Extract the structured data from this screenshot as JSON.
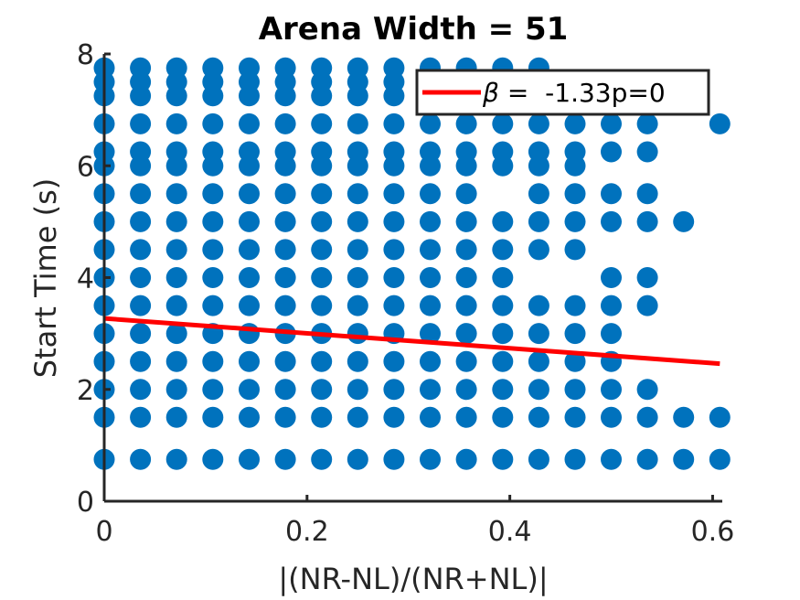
{
  "chart_data": {
    "type": "scatter",
    "title": "Arena Width =  51",
    "xlabel": "|(NR-NL)/(NR+NL)|",
    "ylabel": "Start Time (s)",
    "xlim": [
      0,
      0.605
    ],
    "ylim": [
      0,
      8
    ],
    "xticks": [
      0,
      0.2,
      0.4,
      0.6
    ],
    "xtick_labels": [
      "0",
      "0.2",
      "0.4",
      "0.6"
    ],
    "yticks": [
      0,
      2,
      4,
      6,
      8
    ],
    "ytick_labels": [
      "0",
      "2",
      "4",
      "6",
      "8"
    ],
    "grid": false,
    "legend_position": "top-right",
    "colors": {
      "points": "#0072BD",
      "fit": "#FF0000",
      "axis": "#262626"
    },
    "x_levels": [
      0,
      0.0357,
      0.0714,
      0.1071,
      0.1429,
      0.1786,
      0.2143,
      0.25,
      0.2857,
      0.3214,
      0.3571,
      0.3929,
      0.4286,
      0.4643,
      0.5,
      0.5357,
      0.5714,
      0.6071
    ],
    "rows": [
      {
        "y": 0.75,
        "cols": [
          0,
          1,
          2,
          3,
          4,
          5,
          6,
          7,
          8,
          9,
          10,
          11,
          12,
          13,
          14,
          15,
          16,
          17
        ]
      },
      {
        "y": 1.5,
        "cols": [
          0,
          1,
          2,
          3,
          4,
          5,
          6,
          7,
          8,
          9,
          10,
          11,
          12,
          13,
          14,
          15,
          16,
          17
        ]
      },
      {
        "y": 2.0,
        "cols": [
          0,
          1,
          2,
          3,
          4,
          5,
          6,
          7,
          8,
          9,
          10,
          11,
          12,
          13,
          14,
          15
        ]
      },
      {
        "y": 2.5,
        "cols": [
          0,
          1,
          2,
          3,
          4,
          5,
          6,
          7,
          8,
          9,
          10,
          11,
          12,
          13,
          14
        ]
      },
      {
        "y": 3.0,
        "cols": [
          0,
          1,
          2,
          3,
          4,
          5,
          6,
          7,
          8,
          9,
          10,
          11,
          12,
          13,
          14
        ]
      },
      {
        "y": 3.5,
        "cols": [
          0,
          1,
          2,
          3,
          4,
          5,
          6,
          7,
          8,
          9,
          10,
          11,
          12,
          13,
          14,
          15
        ]
      },
      {
        "y": 4.0,
        "cols": [
          0,
          1,
          2,
          3,
          4,
          5,
          6,
          7,
          8,
          9,
          10,
          11,
          14,
          15
        ]
      },
      {
        "y": 4.5,
        "cols": [
          0,
          1,
          2,
          3,
          4,
          5,
          6,
          7,
          8,
          9,
          10,
          11,
          12,
          13
        ]
      },
      {
        "y": 5.0,
        "cols": [
          0,
          1,
          2,
          3,
          4,
          5,
          6,
          7,
          8,
          9,
          10,
          11,
          12,
          13,
          14,
          15,
          16
        ]
      },
      {
        "y": 5.5,
        "cols": [
          0,
          1,
          2,
          3,
          4,
          5,
          6,
          7,
          8,
          9,
          10,
          12,
          13,
          14,
          15
        ]
      },
      {
        "y": 6.0,
        "cols": [
          0,
          1,
          2,
          3,
          4,
          5,
          6,
          7,
          8,
          9,
          10,
          11,
          12,
          13
        ]
      },
      {
        "y": 6.25,
        "cols": [
          0,
          1,
          2,
          3,
          4,
          5,
          6,
          7,
          8,
          9,
          10,
          11,
          12,
          13,
          14,
          15
        ]
      },
      {
        "y": 6.75,
        "cols": [
          0,
          1,
          2,
          3,
          4,
          5,
          6,
          7,
          8,
          9,
          10,
          11,
          12,
          13,
          14,
          15,
          17
        ]
      },
      {
        "y": 7.25,
        "cols": [
          0,
          1,
          2,
          3,
          4,
          5,
          6,
          7,
          8
        ]
      },
      {
        "y": 7.5,
        "cols": [
          0,
          1,
          2,
          3,
          4,
          5,
          6,
          7,
          8
        ]
      },
      {
        "y": 7.75,
        "cols": [
          0,
          1,
          2,
          3,
          4,
          5,
          6,
          7,
          8,
          9,
          10,
          11,
          12
        ]
      }
    ],
    "fit_line": {
      "x": [
        0,
        0.6071
      ],
      "y": [
        3.27,
        2.46
      ]
    },
    "legend": {
      "symbol": "β",
      "text": " =  -1.33p=0"
    }
  }
}
